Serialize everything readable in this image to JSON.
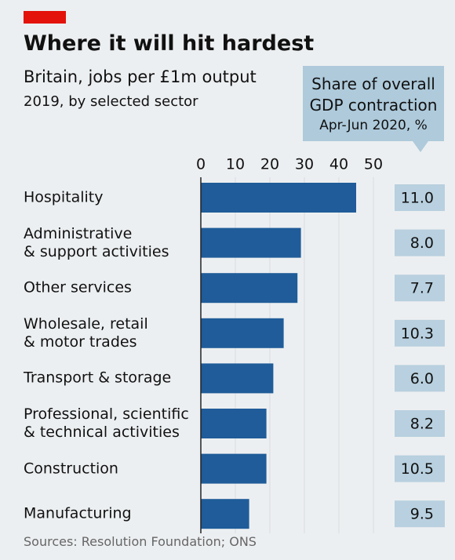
{
  "chart_data": {
    "type": "bar",
    "orientation": "horizontal",
    "title": "Where it will hit hardest",
    "subtitle": "Britain, jobs per £1m output",
    "note": "2019, by selected sector",
    "categories": [
      "Hospitality",
      "Administrative\n& support activities",
      "Other services",
      "Wholesale, retail\n& motor trades",
      "Transport & storage",
      "Professional, scientific\n& technical activities",
      "Construction",
      "Manufacturing"
    ],
    "values": [
      45,
      29,
      28,
      24,
      21,
      19,
      19,
      14
    ],
    "color": "#1f5c99",
    "xlim": [
      0,
      50
    ],
    "xticks": [
      0,
      10,
      20,
      30,
      40,
      50
    ],
    "column": {
      "title": "Share of overall GDP contraction",
      "subtitle": "Apr-Jun 2020, %",
      "values": [
        11,
        8,
        7.7,
        10.3,
        6,
        8.2,
        10.5,
        9.5
      ],
      "value_labels": [
        "11.0",
        "8.0",
        "7.7",
        "10.3",
        "6.0",
        "8.2",
        "10.5",
        "9.5"
      ]
    },
    "source": "Sources: Resolution Foundation; ONS"
  }
}
